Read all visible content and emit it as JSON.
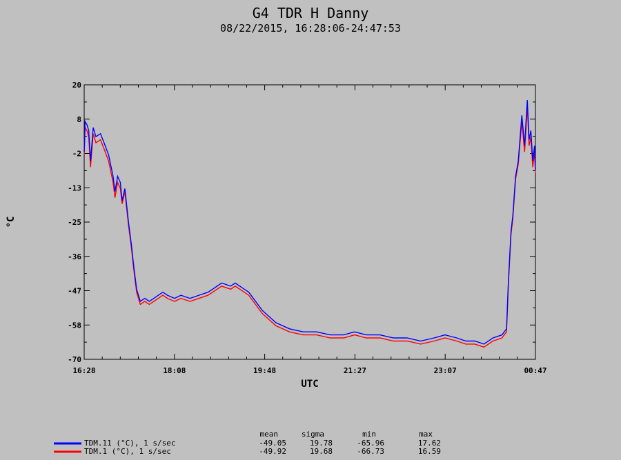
{
  "chart_data": {
    "type": "line",
    "title": "G4 TDR H Danny",
    "subtitle": "08/22/2015, 16:28:06-24:47:53",
    "xlabel": "UTC",
    "ylabel": "°C",
    "ylim": [
      -70,
      20
    ],
    "xlim": [
      "16:28",
      "00:47"
    ],
    "x_ticks": [
      "16:28",
      "18:08",
      "19:48",
      "21:27",
      "23:07",
      "00:47"
    ],
    "y_ticks": [
      20,
      8,
      -2,
      -13,
      -25,
      -36,
      -47,
      -58,
      -70
    ],
    "grid": false,
    "legend_position": "bottom-left",
    "stats_headers": [
      "mean",
      "sigma",
      "min",
      "max"
    ],
    "series": [
      {
        "name": "TDM.11 (°C), 1 s/sec",
        "color": "#0000ff",
        "stats": [
          "-49.05",
          "19.78",
          "-65.96",
          "17.62"
        ],
        "x": [
          "16:28",
          "16:29",
          "16:31",
          "16:33",
          "16:35",
          "16:38",
          "16:41",
          "16:46",
          "16:50",
          "16:55",
          "17:00",
          "17:02",
          "17:05",
          "17:08",
          "17:10",
          "17:13",
          "17:17",
          "17:20",
          "17:23",
          "17:26",
          "17:30",
          "17:35",
          "17:40",
          "17:45",
          "17:50",
          "17:55",
          "18:00",
          "18:08",
          "18:15",
          "18:25",
          "18:35",
          "18:45",
          "19:00",
          "19:10",
          "19:15",
          "19:25",
          "19:30",
          "19:40",
          "19:45",
          "20:00",
          "20:15",
          "20:30",
          "20:45",
          "21:00",
          "21:15",
          "21:27",
          "21:40",
          "21:55",
          "22:10",
          "22:25",
          "22:40",
          "22:55",
          "23:07",
          "23:20",
          "23:30",
          "23:40",
          "23:50",
          "24:00",
          "24:10",
          "24:15",
          "24:17",
          "24:20",
          "24:22",
          "24:25",
          "24:28",
          "24:32",
          "24:35",
          "24:38",
          "24:40",
          "24:42",
          "24:44",
          "24:46",
          "24:47"
        ],
        "y": [
          -2,
          8,
          7,
          5,
          -5,
          6,
          3,
          4,
          1,
          -3,
          -10,
          -15,
          -10,
          -12,
          -18,
          -14,
          -25,
          -32,
          -40,
          -47,
          -51,
          -50,
          -51,
          -50,
          -49,
          -48,
          -49,
          -50,
          -49,
          -50,
          -49,
          -48,
          -45,
          -46,
          -45,
          -47,
          -48,
          -50,
          -54,
          -58,
          -60,
          -61,
          -61,
          -62,
          -62,
          -61,
          -62,
          -62,
          -63,
          -63,
          -64,
          -63,
          -62,
          -63,
          -64,
          -64,
          -65,
          -63,
          -62,
          -60,
          -45,
          -28,
          -23,
          -10,
          -5,
          10,
          0,
          15,
          2,
          5,
          -5,
          0,
          -8
        ]
      },
      {
        "name": "TDM.1 (°C), 1 s/sec",
        "color": "#ff0000",
        "stats": [
          "-49.92",
          "19.68",
          "-66.73",
          "16.59"
        ],
        "x": [
          "16:28",
          "16:29",
          "16:31",
          "16:33",
          "16:35",
          "16:38",
          "16:41",
          "16:46",
          "16:50",
          "16:55",
          "17:00",
          "17:02",
          "17:05",
          "17:08",
          "17:10",
          "17:13",
          "17:17",
          "17:20",
          "17:23",
          "17:26",
          "17:30",
          "17:35",
          "17:40",
          "17:45",
          "17:50",
          "17:55",
          "18:00",
          "18:08",
          "18:15",
          "18:25",
          "18:35",
          "18:45",
          "19:00",
          "19:10",
          "19:15",
          "19:25",
          "19:30",
          "19:40",
          "19:45",
          "20:00",
          "20:15",
          "20:30",
          "20:45",
          "21:00",
          "21:15",
          "21:27",
          "21:40",
          "21:55",
          "22:10",
          "22:25",
          "22:40",
          "22:55",
          "23:07",
          "23:20",
          "23:30",
          "23:40",
          "23:50",
          "24:00",
          "24:10",
          "24:15",
          "24:17",
          "24:20",
          "24:22",
          "24:25",
          "24:28",
          "24:32",
          "24:35",
          "24:38",
          "24:40",
          "24:42",
          "24:44",
          "24:46",
          "24:47"
        ],
        "y": [
          -3,
          6,
          5,
          3,
          -7,
          4,
          1,
          2,
          -1,
          -5,
          -12,
          -17,
          -12,
          -14,
          -19,
          -15,
          -26,
          -33,
          -41,
          -48,
          -52,
          -51,
          -52,
          -51,
          -50,
          -49,
          -50,
          -51,
          -50,
          -51,
          -50,
          -49,
          -46,
          -47,
          -46,
          -48,
          -49,
          -51,
          -55,
          -59,
          -61,
          -62,
          -62,
          -63,
          -63,
          -62,
          -63,
          -63,
          -64,
          -64,
          -65,
          -64,
          -63,
          -64,
          -65,
          -65,
          -66,
          -64,
          -63,
          -61,
          -46,
          -29,
          -24,
          -11,
          -6,
          8,
          -2,
          13,
          0,
          3,
          -7,
          -2,
          -9
        ]
      }
    ]
  }
}
